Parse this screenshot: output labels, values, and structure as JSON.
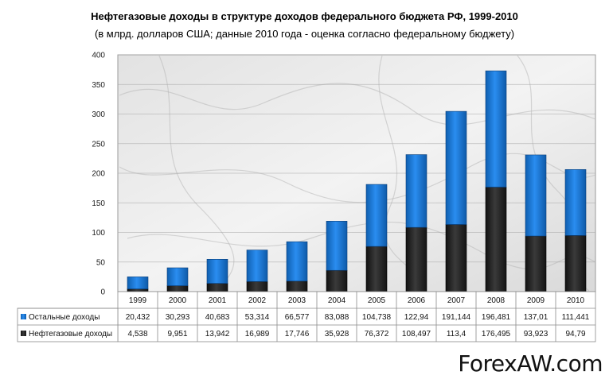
{
  "chart_data": {
    "type": "bar",
    "stacked": true,
    "title": "Нефтегазовые доходы в структуре доходов федерального бюджета РФ, 1999-2010",
    "subtitle": "(в млрд. долларов США; данные 2010 года - оценка согласно федеральному бюджету)",
    "categories": [
      "1999",
      "2000",
      "2001",
      "2002",
      "2003",
      "2004",
      "2005",
      "2006",
      "2007",
      "2008",
      "2009",
      "2010"
    ],
    "ylim": [
      0,
      400
    ],
    "yticks": [
      "0",
      "50",
      "100",
      "150",
      "200",
      "250",
      "300",
      "350",
      "400"
    ],
    "grid": true,
    "legend": "data-table",
    "series": [
      {
        "name": "Остальные доходы",
        "color": "#1e7fd8",
        "values": [
          20.432,
          30.293,
          40.683,
          53.314,
          66.577,
          83.088,
          104.738,
          122.94,
          191.144,
          196.481,
          137.01,
          111.441
        ],
        "labels": [
          "20,432",
          "30,293",
          "40,683",
          "53,314",
          "66,577",
          "83,088",
          "104,738",
          "122,94",
          "191,144",
          "196,481",
          "137,01",
          "111,441"
        ]
      },
      {
        "name": "Нефтегазовые доходы",
        "color": "#2b2b2b",
        "values": [
          4.538,
          9.951,
          13.942,
          16.989,
          17.746,
          35.928,
          76.372,
          108.497,
          113.4,
          176.495,
          93.923,
          94.79
        ],
        "labels": [
          "4,538",
          "9,951",
          "13,942",
          "16,989",
          "17,746",
          "35,928",
          "76,372",
          "108,497",
          "113,4",
          "176,495",
          "93,923",
          "94,79"
        ]
      }
    ]
  },
  "watermark": "ForexAW.com"
}
